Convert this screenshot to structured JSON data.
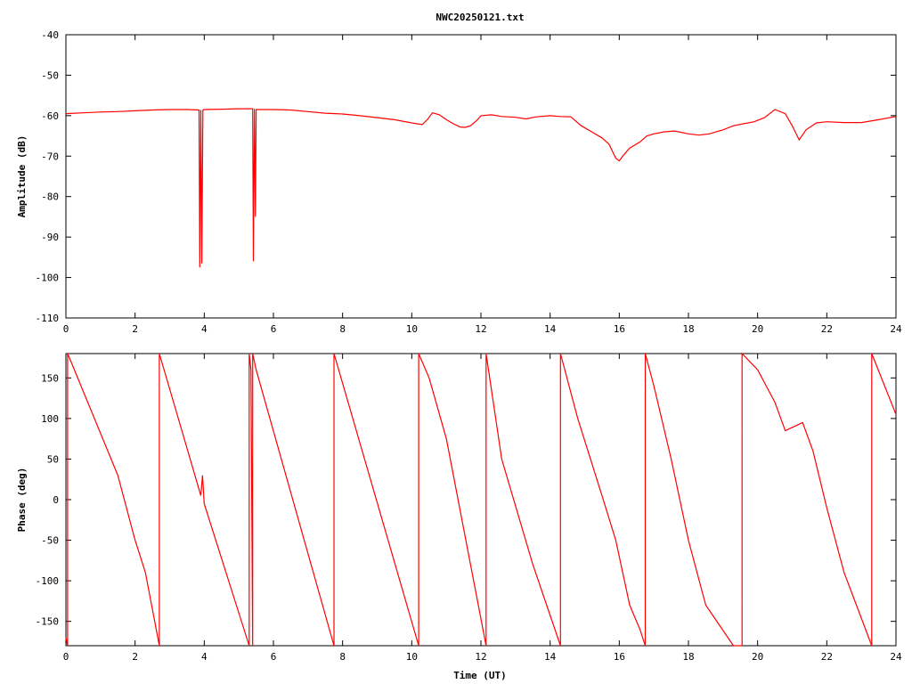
{
  "title": "NWC20250121.txt",
  "chart_data": [
    {
      "type": "line",
      "ylabel": "Amplitude (dB)",
      "xlabel": "",
      "xlim": [
        0,
        24
      ],
      "ylim": [
        -110,
        -40
      ],
      "xticks": [
        0,
        2,
        4,
        6,
        8,
        10,
        12,
        14,
        16,
        18,
        20,
        22,
        24
      ],
      "yticks": [
        -110,
        -100,
        -90,
        -80,
        -70,
        -60,
        -50,
        -40
      ],
      "color": "#ff0000",
      "series": [
        {
          "x": [
            0,
            0.5,
            1,
            1.5,
            2,
            2.5,
            3,
            3.5,
            3.85,
            3.87,
            3.9,
            3.93,
            3.96,
            4.0,
            4.5,
            5.0,
            5.4,
            5.42,
            5.45,
            5.48,
            5.5,
            6,
            6.5,
            7,
            7.5,
            8,
            8.5,
            9,
            9.5,
            10,
            10.3,
            10.45,
            10.6,
            10.8,
            11.0,
            11.2,
            11.4,
            11.55,
            11.7,
            11.9,
            12.0,
            12.3,
            12.6,
            13.0,
            13.3,
            13.6,
            14.0,
            14.3,
            14.6,
            14.9,
            15.2,
            15.5,
            15.7,
            15.9,
            16.0,
            16.1,
            16.3,
            16.6,
            16.8,
            17.0,
            17.3,
            17.6,
            18.0,
            18.3,
            18.6,
            19.0,
            19.3,
            19.6,
            19.9,
            20.2,
            20.5,
            20.8,
            21.0,
            21.2,
            21.4,
            21.7,
            22.0,
            22.5,
            23.0,
            23.5,
            24.0
          ],
          "y": [
            -59.5,
            -59.3,
            -59.1,
            -59.0,
            -58.8,
            -58.6,
            -58.5,
            -58.5,
            -58.6,
            -97.5,
            -58.6,
            -96.5,
            -58.6,
            -58.5,
            -58.4,
            -58.3,
            -58.3,
            -96.0,
            -58.3,
            -85.0,
            -58.5,
            -58.5,
            -58.6,
            -59.0,
            -59.4,
            -59.6,
            -60.0,
            -60.5,
            -61.0,
            -61.8,
            -62.2,
            -61.0,
            -59.3,
            -59.8,
            -61.0,
            -62.0,
            -62.8,
            -62.9,
            -62.5,
            -61.0,
            -60.0,
            -59.8,
            -60.2,
            -60.4,
            -60.8,
            -60.3,
            -60.0,
            -60.2,
            -60.3,
            -62.5,
            -64.0,
            -65.5,
            -67.0,
            -70.5,
            -71.2,
            -70.0,
            -68.0,
            -66.5,
            -65.0,
            -64.5,
            -64.0,
            -63.8,
            -64.5,
            -64.8,
            -64.5,
            -63.5,
            -62.5,
            -62.0,
            -61.5,
            -60.5,
            -58.5,
            -59.5,
            -62.5,
            -66.0,
            -63.5,
            -61.8,
            -61.5,
            -61.7,
            -61.7,
            -61.0,
            -60.2
          ]
        }
      ]
    },
    {
      "type": "line",
      "ylabel": "Phase (deg)",
      "xlabel": "Time (UT)",
      "xlim": [
        0,
        24
      ],
      "ylim": [
        -180,
        180
      ],
      "xticks": [
        0,
        2,
        4,
        6,
        8,
        10,
        12,
        14,
        16,
        18,
        20,
        22,
        24
      ],
      "yticks": [
        -150,
        -100,
        -50,
        0,
        50,
        100,
        150
      ],
      "color": "#ff0000",
      "series": [
        {
          "x": [
            0,
            0.05,
            0.05,
            0.1,
            1.5,
            2.0,
            2.3,
            2.7,
            2.7,
            3.9,
            3.95,
            4.0,
            5.3,
            5.3,
            5.35,
            5.4,
            5.4,
            5.5,
            7.75,
            7.75,
            10.2,
            10.2,
            10.5,
            11.0,
            12.15,
            12.15,
            12.6,
            13.5,
            14.3,
            14.3,
            14.8,
            15.5,
            15.9,
            16.0,
            16.3,
            16.6,
            16.75,
            16.75,
            17.0,
            17.5,
            18.0,
            18.5,
            19.3,
            19.55,
            19.55,
            20.0,
            20.5,
            20.8,
            21.3,
            21.6,
            22.0,
            22.5,
            23.3,
            23.3,
            24.0
          ],
          "y": [
            -170,
            -180,
            180,
            175,
            30,
            -50,
            -90,
            -180,
            180,
            5,
            30,
            -5,
            -180,
            180,
            160,
            -180,
            180,
            160,
            -180,
            180,
            -180,
            180,
            150,
            75,
            -180,
            180,
            50,
            -80,
            -180,
            180,
            100,
            5,
            -50,
            -70,
            -130,
            -160,
            -180,
            180,
            140,
            50,
            -50,
            -130,
            -180,
            -180,
            180,
            160,
            120,
            85,
            95,
            60,
            -10,
            -90,
            -180,
            180,
            105
          ]
        }
      ]
    }
  ]
}
